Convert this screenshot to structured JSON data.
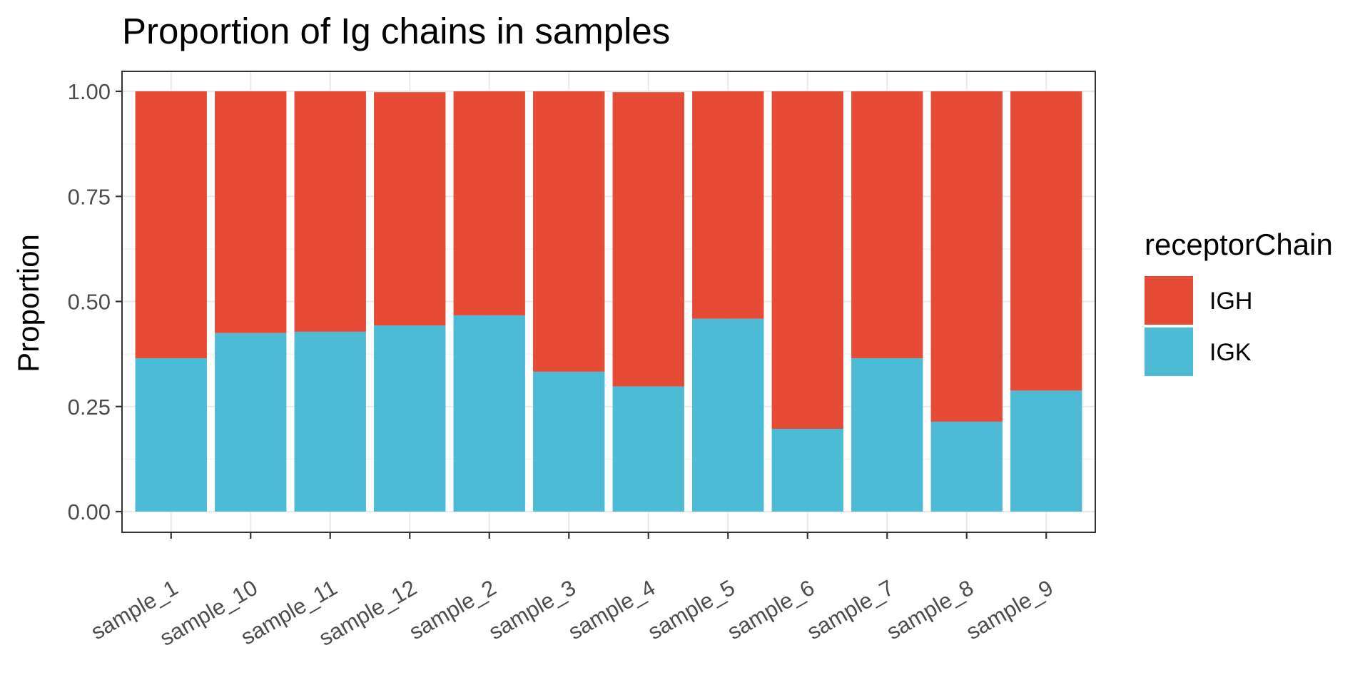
{
  "chart_data": {
    "type": "bar",
    "stacked": true,
    "title": "Proportion of Ig chains in samples",
    "xlabel": "",
    "ylabel": "Proportion",
    "ylim": [
      0,
      1
    ],
    "yticks": [
      "0.00",
      "0.25",
      "0.50",
      "0.75",
      "1.00"
    ],
    "grid": true,
    "legend": {
      "title": "receptorChain",
      "position": "right"
    },
    "categories": [
      "sample_1",
      "sample_10",
      "sample_11",
      "sample_12",
      "sample_2",
      "sample_3",
      "sample_4",
      "sample_5",
      "sample_6",
      "sample_7",
      "sample_8",
      "sample_9"
    ],
    "series": [
      {
        "name": "IGK",
        "color": "#4DBBD5",
        "values": [
          0.365,
          0.425,
          0.428,
          0.443,
          0.467,
          0.333,
          0.298,
          0.459,
          0.197,
          0.365,
          0.214,
          0.288
        ]
      },
      {
        "name": "IGH",
        "color": "#E64B35",
        "values": [
          0.635,
          0.575,
          0.572,
          0.555,
          0.533,
          0.667,
          0.7,
          0.541,
          0.803,
          0.635,
          0.786,
          0.712
        ]
      }
    ]
  }
}
